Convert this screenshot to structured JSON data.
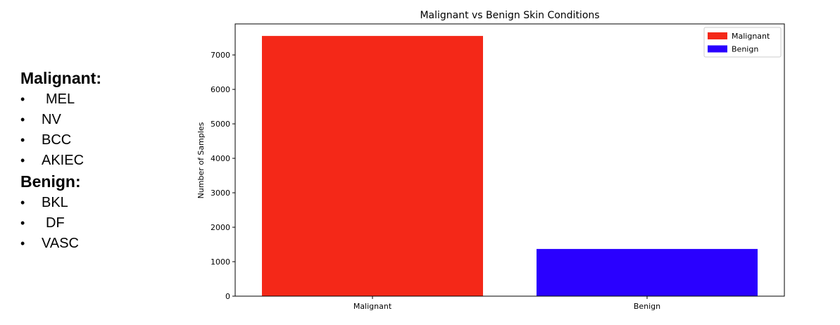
{
  "side_panel": {
    "groups": [
      {
        "heading": "Malignant:",
        "items": [
          "MEL",
          "NV",
          "BCC",
          "AKIEC"
        ]
      },
      {
        "heading": "Benign:",
        "items": [
          "BKL",
          "DF",
          "VASC"
        ]
      }
    ],
    "bullet": "•"
  },
  "chart_data": {
    "type": "bar",
    "title": "Malignant vs Benign Skin Conditions",
    "xlabel": "",
    "ylabel": "Number of Samples",
    "categories": [
      "Malignant",
      "Benign"
    ],
    "values": [
      7550,
      1370
    ],
    "colors": [
      "#f42818",
      "#2a00ff"
    ],
    "ylim": [
      0,
      7900
    ],
    "yticks": [
      0,
      1000,
      2000,
      3000,
      4000,
      5000,
      6000,
      7000
    ],
    "grid": false,
    "legend": {
      "position": "top-right",
      "entries": [
        {
          "label": "Malignant",
          "color": "#f42818"
        },
        {
          "label": "Benign",
          "color": "#2a00ff"
        }
      ]
    }
  }
}
